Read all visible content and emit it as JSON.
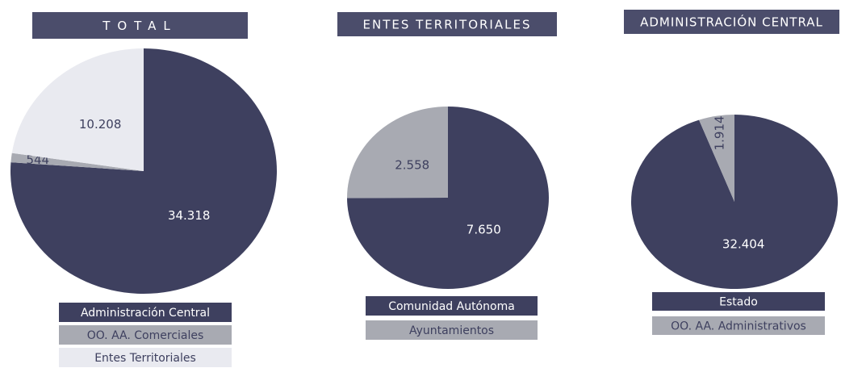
{
  "chart_data": [
    {
      "type": "pie",
      "title": "TOTAL",
      "categories": [
        "Administración Central",
        "OO. AA. Comerciales",
        "Entes Territoriales"
      ],
      "values": [
        34318,
        544,
        10208
      ],
      "value_labels": [
        "34.318",
        "544",
        "10.208"
      ],
      "colors": [
        "#3e405f",
        "#a8aab2",
        "#e9eaf0"
      ]
    },
    {
      "type": "pie",
      "title": "ENTES TERRITORIALES",
      "categories": [
        "Comunidad Autónoma",
        "Ayuntamientos"
      ],
      "values": [
        7650,
        2558
      ],
      "value_labels": [
        "7.650",
        "2.558"
      ],
      "colors": [
        "#3e405f",
        "#a8aab2"
      ]
    },
    {
      "type": "pie",
      "title": "ADMINISTRACIÓN CENTRAL",
      "categories": [
        "Estado",
        "OO. AA. Administrativos"
      ],
      "values": [
        32404,
        1914
      ],
      "value_labels": [
        "32.404",
        "1.914"
      ],
      "colors": [
        "#3e405f",
        "#a8aab2"
      ]
    }
  ]
}
